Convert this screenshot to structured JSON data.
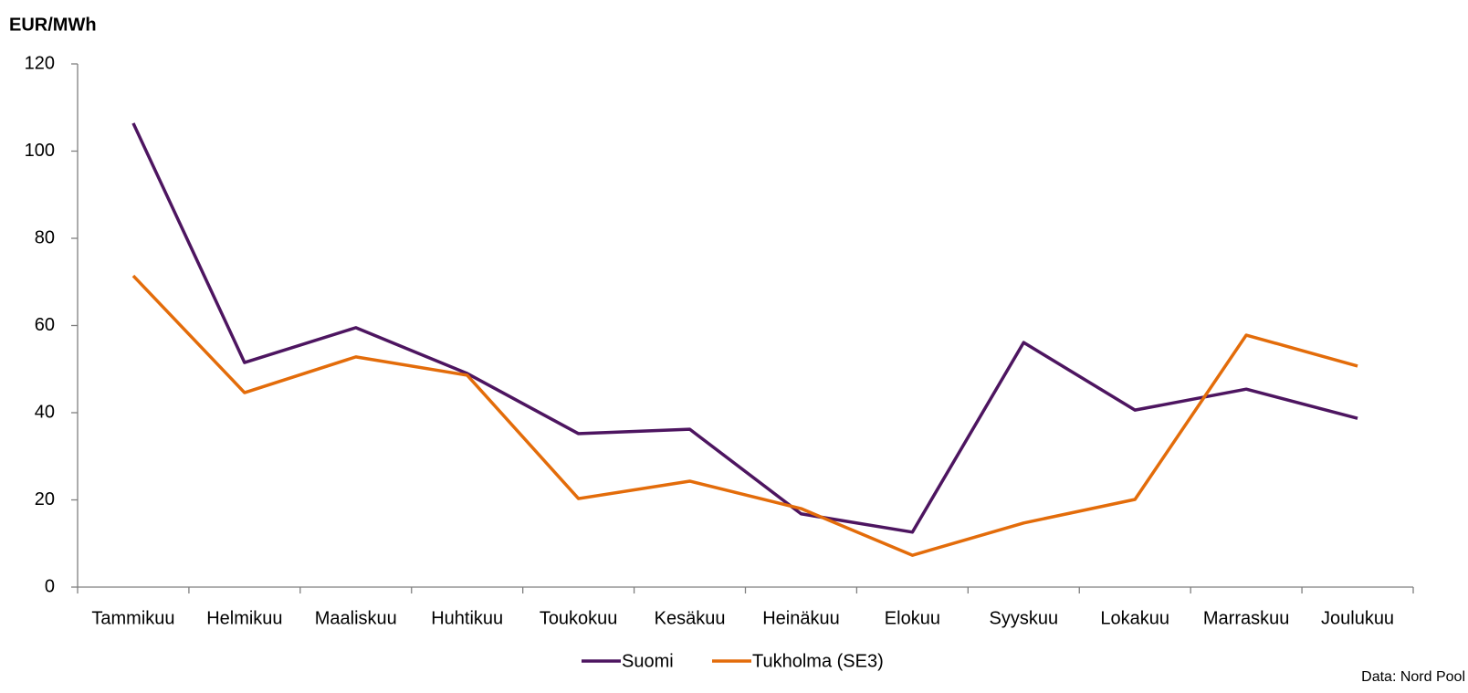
{
  "chart_data": {
    "type": "line",
    "y_label": "EUR/MWh",
    "source": "Data: Nord Pool",
    "categories": [
      "Tammikuu",
      "Helmikuu",
      "Maaliskuu",
      "Huhtikuu",
      "Toukokuu",
      "Kesäkuu",
      "Heinäkuu",
      "Elokuu",
      "Syyskuu",
      "Lokakuu",
      "Marraskuu",
      "Joulukuu"
    ],
    "series": [
      {
        "name": "Suomi",
        "color": "#4d1560",
        "values": [
          106.4,
          51.5,
          59.5,
          49,
          35.2,
          36.2,
          16.8,
          12.6,
          56.1,
          40.6,
          45.4,
          38.7
        ]
      },
      {
        "name": "Tukholma (SE3)",
        "color": "#e36c0a",
        "values": [
          71.4,
          44.6,
          52.8,
          48.6,
          20.3,
          24.3,
          18,
          7.3,
          14.7,
          20.1,
          57.8,
          50.7
        ]
      }
    ],
    "ylim": [
      0,
      120
    ],
    "yticks": [
      0,
      20,
      40,
      60,
      80,
      100,
      120
    ],
    "grid": false,
    "legend": "bottom"
  }
}
